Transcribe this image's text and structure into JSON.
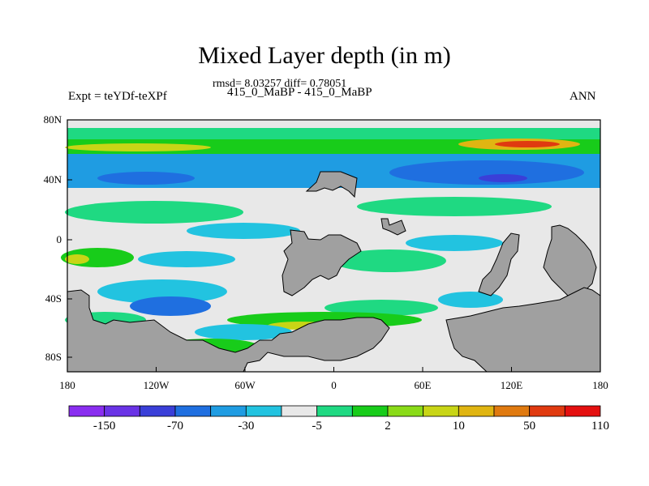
{
  "title": "Mixed Layer depth (in m)",
  "stats_text": "rmsd= 8.03257 diff= 0.78051",
  "case_text": "415_0_MaBP - 415_0_MaBP",
  "expt_text": "Expt = teYDf-teXPf",
  "season_text": "ANN",
  "map": {
    "lon_ticks": [
      "180",
      "120W",
      "60W",
      "0",
      "60E",
      "120E",
      "180"
    ],
    "lat_ticks": [
      "80N",
      "40N",
      "0",
      "40S",
      "80S"
    ],
    "background_color": "#e8e8e8",
    "land_color": "#a0a0a0"
  },
  "colorbar": {
    "labels": [
      "-150",
      "-70",
      "-30",
      "-5",
      "2",
      "10",
      "50",
      "110"
    ],
    "colors": [
      "#8a2ef0",
      "#6a33e6",
      "#3a3fd8",
      "#1f6fe0",
      "#1f9ce2",
      "#22c3e0",
      "#e8e8e8",
      "#1fd982",
      "#18cc1a",
      "#8adb18",
      "#c8d516",
      "#e0b512",
      "#e07a10",
      "#e03a10",
      "#e41010"
    ]
  }
}
